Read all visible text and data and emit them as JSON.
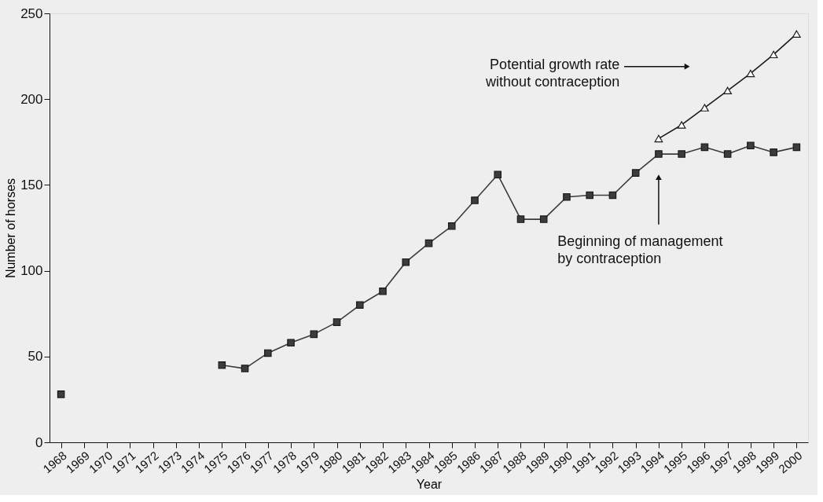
{
  "chart_data": {
    "type": "line",
    "xlabel": "Year",
    "ylabel": "Number of horses",
    "categories": [
      "1968",
      "1969",
      "1970",
      "1971",
      "1972",
      "1973",
      "1974",
      "1975",
      "1976",
      "1977",
      "1978",
      "1979",
      "1980",
      "1981",
      "1982",
      "1983",
      "1984",
      "1985",
      "1986",
      "1987",
      "1988",
      "1989",
      "1990",
      "1991",
      "1992",
      "1993",
      "1994",
      "1995",
      "1996",
      "1997",
      "1998",
      "1999",
      "2000"
    ],
    "series": [
      {
        "color": "#3c3c3c",
        "marker": "square",
        "values": [
          28,
          null,
          null,
          null,
          null,
          null,
          null,
          45,
          43,
          52,
          58,
          63,
          70,
          80,
          88,
          105,
          116,
          126,
          141,
          156,
          130,
          130,
          143,
          144,
          144,
          157,
          168,
          168,
          172,
          168,
          173,
          169,
          172
        ]
      },
      {
        "color": "#1a1a1a",
        "marker": "triangle",
        "values": [
          null,
          null,
          null,
          null,
          null,
          null,
          null,
          null,
          null,
          null,
          null,
          null,
          null,
          null,
          null,
          null,
          null,
          null,
          null,
          null,
          null,
          null,
          null,
          null,
          null,
          null,
          177,
          185,
          195,
          205,
          215,
          226,
          238
        ]
      }
    ],
    "ylim": [
      0,
      250
    ],
    "yticks": [
      0,
      50,
      100,
      150,
      200,
      250
    ],
    "grid": false,
    "line_style": "solid",
    "annotations": [
      "Potential growth rate\nwithout contraception",
      "Beginning of management\nby contraception"
    ]
  }
}
